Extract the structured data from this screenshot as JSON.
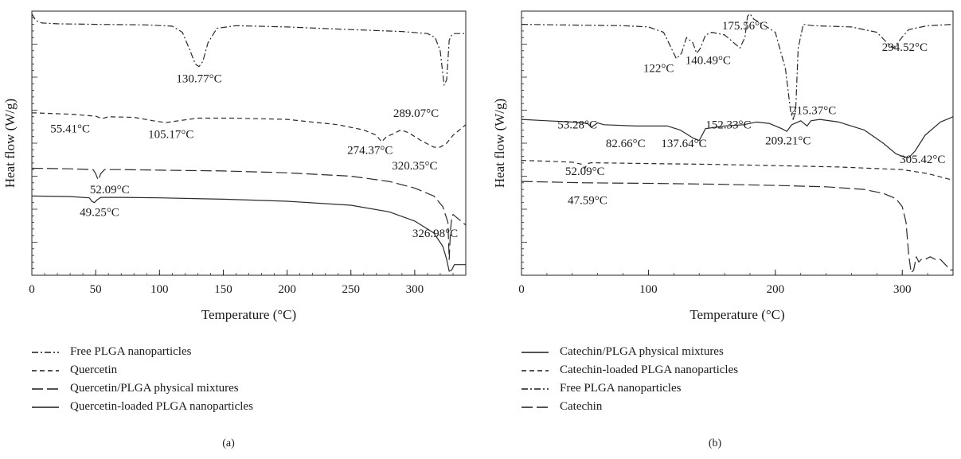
{
  "chart_data": [
    {
      "type": "line",
      "panel_label": "(a)",
      "xlabel": "Temperature (°C)",
      "ylabel": "Heat flow (W/g)",
      "xlim": [
        0,
        340
      ],
      "ylim": [
        0,
        100
      ],
      "xticks": [
        0,
        50,
        100,
        150,
        200,
        250,
        300
      ],
      "grid": false,
      "legend_placement": "below",
      "series": [
        {
          "name": "Free PLGA nanoparticles",
          "dash": "dashdot",
          "x": [
            0,
            3,
            8,
            20,
            50,
            90,
            110,
            118,
            124,
            128,
            131,
            134,
            138,
            145,
            160,
            200,
            250,
            290,
            310,
            316,
            320,
            323,
            325,
            327,
            329,
            331,
            333,
            336,
            340
          ],
          "y": [
            99,
            96.5,
            95.5,
            95.2,
            95,
            94.8,
            94.3,
            92,
            85,
            80,
            79,
            81,
            88,
            93.5,
            94.5,
            94,
            93,
            92.3,
            91.5,
            90,
            85,
            72,
            74,
            89,
            91,
            91.5,
            91.5,
            91.5,
            91.5
          ]
        },
        {
          "name": "Quercetin",
          "dash": "dashed",
          "x": [
            0,
            30,
            50,
            55,
            60,
            80,
            95,
            105,
            115,
            130,
            160,
            200,
            240,
            260,
            270,
            274,
            278,
            283,
            289,
            295,
            305,
            315,
            320,
            325,
            330,
            340
          ],
          "y": [
            61.5,
            61,
            60.2,
            59.3,
            60,
            59.8,
            58.5,
            57.8,
            58.5,
            59.5,
            59.5,
            59,
            57,
            55,
            53,
            50.5,
            52.5,
            53.5,
            55,
            54,
            51,
            48.5,
            48.5,
            50,
            53,
            57
          ]
        },
        {
          "name": "Quercetin/PLGA physical mixtures",
          "dash": "longdash",
          "x": [
            0,
            30,
            48,
            50,
            52,
            54,
            57,
            70,
            100,
            150,
            200,
            250,
            280,
            300,
            315,
            322,
            326,
            327,
            328,
            329,
            330,
            335,
            340
          ],
          "y": [
            40.5,
            40.3,
            40,
            38.5,
            36,
            38.5,
            40,
            40,
            39.8,
            39.5,
            38.8,
            37.5,
            35.5,
            33,
            30,
            26,
            20,
            6,
            17,
            22,
            23,
            21,
            19
          ]
        },
        {
          "name": "Quercetin-loaded PLGA nanoparticles",
          "dash": "solid",
          "x": [
            0,
            30,
            45,
            47,
            49,
            51,
            54,
            70,
            100,
            150,
            200,
            250,
            280,
            300,
            315,
            322,
            325,
            327,
            329,
            331,
            335,
            340
          ],
          "y": [
            30,
            29.8,
            29.3,
            28,
            27.5,
            28.5,
            29.5,
            29.5,
            29.3,
            28.8,
            28,
            26.5,
            24,
            20.5,
            16,
            11,
            6,
            1.5,
            2,
            4,
            4,
            4
          ]
        }
      ],
      "annotations": [
        {
          "text": "130.77°C",
          "x": 131,
          "y": 73
        },
        {
          "text": "55.41°C",
          "x": 30,
          "y": 54
        },
        {
          "text": "105.17°C",
          "x": 109,
          "y": 52
        },
        {
          "text": "289.07°C",
          "x": 301,
          "y": 60
        },
        {
          "text": "274.37°C",
          "x": 265,
          "y": 46
        },
        {
          "text": "320.35°C",
          "x": 300,
          "y": 40
        },
        {
          "text": "52.09°C",
          "x": 61,
          "y": 31
        },
        {
          "text": "49.25°C",
          "x": 53,
          "y": 22.5
        },
        {
          "text": "326.98°C",
          "x": 316,
          "y": 14.5
        }
      ]
    },
    {
      "type": "line",
      "panel_label": "(b)",
      "xlabel": "Temperature (°C)",
      "ylabel": "Heat flow (W/g)",
      "xlim": [
        0,
        340
      ],
      "ylim": [
        0,
        100
      ],
      "xticks": [
        0,
        100,
        200,
        300
      ],
      "grid": false,
      "legend_placement": "below",
      "series": [
        {
          "name": "Catechin/PLGA physical mixtures",
          "dash": "solid",
          "x": [
            0,
            20,
            40,
            52,
            55,
            60,
            65,
            90,
            115,
            125,
            135,
            140,
            145,
            160,
            175,
            185,
            195,
            205,
            209,
            213,
            220,
            225,
            228,
            235,
            250,
            270,
            285,
            295,
            300,
            305,
            310,
            318,
            330,
            340
          ],
          "y": [
            59,
            58.5,
            58,
            57.5,
            56,
            57.7,
            57,
            56.5,
            56.5,
            55,
            52,
            51,
            55.5,
            56.5,
            57,
            58,
            57.5,
            55.5,
            54.5,
            57,
            58.5,
            56.5,
            58.5,
            59,
            58,
            55,
            50,
            46,
            45,
            44.5,
            47,
            53,
            58,
            60
          ]
        },
        {
          "name": "Catechin-loaded PLGA nanoparticles",
          "dash": "dashed",
          "x": [
            0,
            20,
            40,
            48,
            50,
            52,
            55,
            70,
            100,
            150,
            200,
            250,
            300,
            320,
            340
          ],
          "y": [
            43.5,
            43.2,
            42.8,
            42,
            40.5,
            42.3,
            42.6,
            42.5,
            42.3,
            42,
            41.5,
            41,
            40,
            38.5,
            36
          ]
        },
        {
          "name": "Free PLGA nanoparticles",
          "dash": "dashdot",
          "x": [
            0,
            30,
            80,
            100,
            112,
            118,
            122,
            126,
            130,
            135,
            138,
            141,
            145,
            150,
            160,
            165,
            172,
            176,
            178,
            180,
            183,
            190,
            200,
            208,
            212,
            214,
            216,
            218,
            222,
            230,
            260,
            280,
            288,
            293,
            298,
            305,
            320,
            340
          ],
          "y": [
            95,
            94.8,
            94.5,
            94,
            92,
            86,
            82,
            84,
            90,
            88,
            84,
            86,
            91,
            92,
            91,
            89,
            86,
            90,
            98,
            99,
            97,
            95,
            92,
            78,
            62,
            59,
            62,
            86,
            95,
            94.5,
            94,
            92,
            88,
            86,
            89,
            93,
            94.5,
            95
          ]
        },
        {
          "name": "Catechin",
          "dash": "longdash",
          "x": [
            0,
            50,
            100,
            150,
            200,
            240,
            270,
            285,
            295,
            300,
            303,
            305,
            307,
            309,
            311,
            313,
            315,
            318,
            322,
            326,
            330,
            334,
            338,
            340
          ],
          "y": [
            35.5,
            35,
            34.8,
            34.5,
            34,
            33.5,
            32.5,
            31,
            29,
            26,
            20,
            8,
            1,
            2,
            7,
            5,
            6,
            6,
            7,
            6,
            6,
            4,
            2,
            2
          ]
        }
      ],
      "annotations": [
        {
          "text": "175.56°C",
          "x": 176,
          "y": 93
        },
        {
          "text": "294.52°C",
          "x": 302,
          "y": 85
        },
        {
          "text": "122°C",
          "x": 108,
          "y": 77
        },
        {
          "text": "140.49°C",
          "x": 147,
          "y": 80
        },
        {
          "text": "215.37°C",
          "x": 230,
          "y": 61
        },
        {
          "text": "53.28°C",
          "x": 44,
          "y": 55.5
        },
        {
          "text": "152.33°C",
          "x": 163,
          "y": 55.5
        },
        {
          "text": "209.21°C",
          "x": 210,
          "y": 49.5
        },
        {
          "text": "82.66°C",
          "x": 82,
          "y": 48.5
        },
        {
          "text": "137.64°C",
          "x": 128,
          "y": 48.5
        },
        {
          "text": "305.42°C",
          "x": 316,
          "y": 42.5
        },
        {
          "text": "52.09°C",
          "x": 50,
          "y": 38
        },
        {
          "text": "47.59°C",
          "x": 52,
          "y": 27
        }
      ]
    }
  ]
}
